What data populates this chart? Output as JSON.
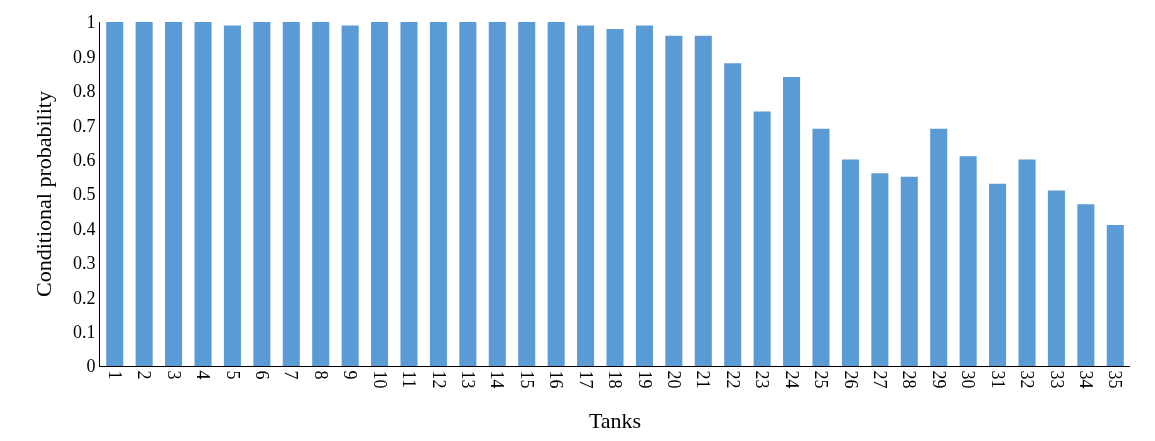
{
  "chart_data": {
    "type": "bar",
    "xlabel": "Tanks",
    "ylabel": "Conditional probability",
    "categories": [
      "1",
      "2",
      "3",
      "4",
      "5",
      "6",
      "7",
      "8",
      "9",
      "10",
      "11",
      "12",
      "13",
      "14",
      "15",
      "16",
      "17",
      "18",
      "19",
      "20",
      "21",
      "22",
      "23",
      "24",
      "25",
      "26",
      "27",
      "28",
      "29",
      "30",
      "31",
      "32",
      "33",
      "34",
      "35"
    ],
    "values": [
      1,
      1,
      1,
      1,
      0.99,
      1,
      1,
      1,
      0.99,
      1,
      1,
      1,
      1,
      1,
      1,
      1,
      0.99,
      0.98,
      0.99,
      0.96,
      0.96,
      0.88,
      0.74,
      0.84,
      0.69,
      0.6,
      0.56,
      0.55,
      0.69,
      0.61,
      0.53,
      0.6,
      0.51,
      0.47,
      0.41
    ],
    "color": "#5b9bd5",
    "ylim": [
      0,
      1
    ],
    "yticks": [
      0,
      0.1,
      0.2,
      0.3,
      0.4,
      0.5,
      0.6,
      0.7,
      0.8,
      0.9,
      1
    ]
  }
}
